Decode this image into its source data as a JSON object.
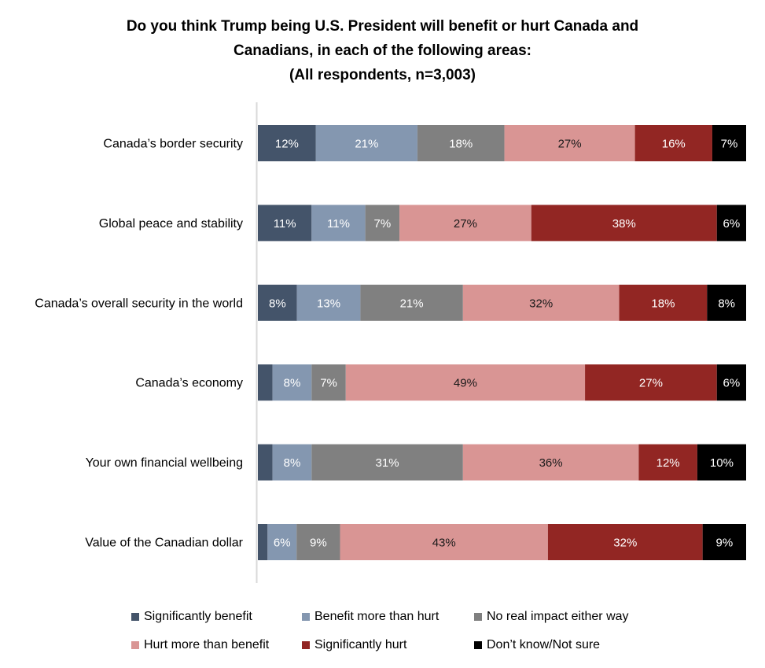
{
  "chart_data": {
    "type": "bar",
    "orientation": "horizontal",
    "stacked": true,
    "title": "Do you think Trump being U.S. President will benefit or hurt Canada and Canadians, in each of the following areas: (All respondents, n=3,003)",
    "title_lines": [
      "Do you think Trump being U.S. President will benefit or hurt Canada and",
      "Canadians, in each of the following areas:",
      "(All respondents, n=3,003)"
    ],
    "xlabel": "",
    "ylabel": "",
    "xlim": [
      0,
      100
    ],
    "grid": false,
    "legend_position": "bottom",
    "categories": [
      "Canada’s border security",
      "Global peace and stability",
      "Canada’s overall security in the world",
      "Canada’s economy",
      "Your own financial wellbeing",
      "Value of the Canadian dollar"
    ],
    "series": [
      {
        "name": "Significantly benefit",
        "color": "#44546A",
        "label_color": "#FFFFFF",
        "values": [
          12,
          11,
          8,
          3,
          3,
          2
        ],
        "labels": [
          "12%",
          "11%",
          "8%",
          "",
          "",
          ""
        ]
      },
      {
        "name": "Benefit more than hurt",
        "color": "#8497B0",
        "label_color": "#FFFFFF",
        "values": [
          21,
          11,
          13,
          8,
          8,
          6
        ],
        "labels": [
          "21%",
          "11%",
          "13%",
          "8%",
          "8%",
          "6%"
        ]
      },
      {
        "name": "No real impact either way",
        "color": "#808080",
        "label_color": "#FFFFFF",
        "values": [
          18,
          7,
          21,
          7,
          31,
          9
        ],
        "labels": [
          "18%",
          "7%",
          "21%",
          "7%",
          "31%",
          "9%"
        ]
      },
      {
        "name": "Hurt more than benefit",
        "color": "#D99594",
        "label_color": "#1A1A1A",
        "values": [
          27,
          27,
          32,
          49,
          36,
          43
        ],
        "labels": [
          "27%",
          "27%",
          "32%",
          "49%",
          "36%",
          "43%"
        ]
      },
      {
        "name": "Significantly hurt",
        "color": "#922623",
        "label_color": "#FFFFFF",
        "values": [
          16,
          38,
          18,
          27,
          12,
          32
        ],
        "labels": [
          "16%",
          "38%",
          "18%",
          "27%",
          "12%",
          "32%"
        ]
      },
      {
        "name": "Don’t know/Not sure",
        "color": "#000000",
        "label_color": "#FFFFFF",
        "values": [
          7,
          6,
          8,
          6,
          10,
          9
        ],
        "labels": [
          "7%",
          "6%",
          "8%",
          "6%",
          "10%",
          "9%"
        ]
      }
    ]
  }
}
